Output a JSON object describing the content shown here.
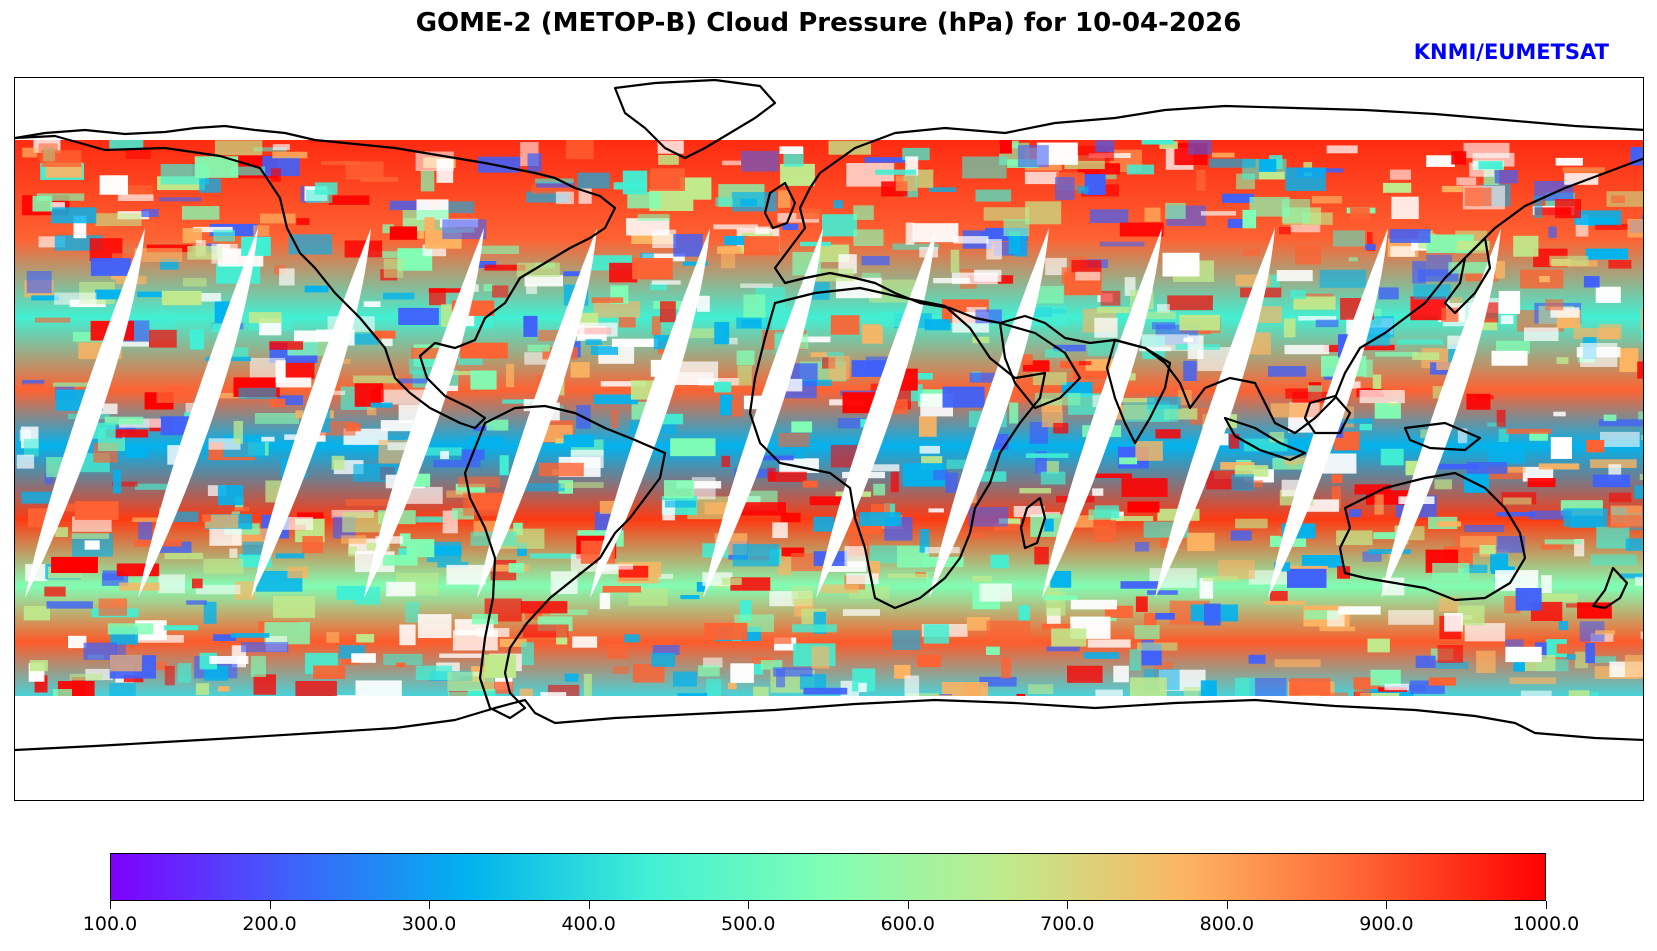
{
  "title": "GOME-2 (METOP-B) Cloud Pressure (hPa) for 10-04-2026",
  "credit": {
    "text": "KNMI/EUMETSAT",
    "color": "#0000ff"
  },
  "map": {
    "projection": "equirectangular",
    "variable": "Cloud Pressure",
    "units": "hPa",
    "swath_gap_count": 13
  },
  "colorbar": {
    "colormap": "rainbow",
    "min": 100.0,
    "max": 1000.0,
    "stops": [
      "#7f00ff",
      "#3f61fa",
      "#01b3ee",
      "#41f0d4",
      "#81feb4",
      "#c0ea8c",
      "#fdb462",
      "#fe6232",
      "#ff0000"
    ],
    "ticks": [
      "100.0",
      "200.0",
      "300.0",
      "400.0",
      "500.0",
      "600.0",
      "700.0",
      "800.0",
      "900.0",
      "1000.0"
    ]
  }
}
